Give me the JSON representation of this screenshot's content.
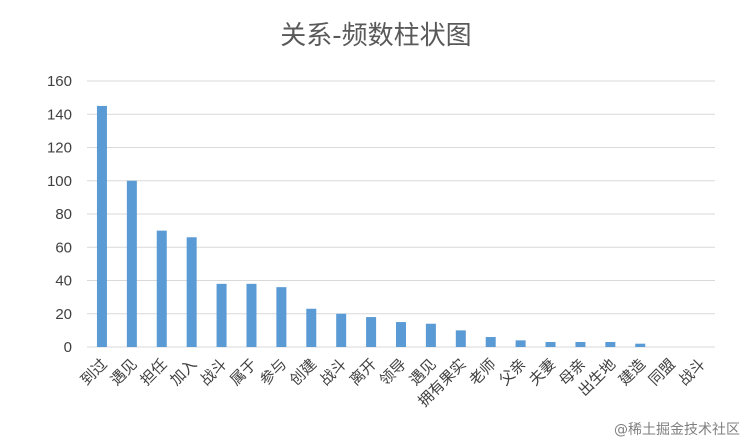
{
  "chart_data": {
    "type": "bar",
    "title": "关系-频数柱状图",
    "categories": [
      "到过",
      "遇见",
      "担任",
      "加入",
      "战斗",
      "属于",
      "参与",
      "创建",
      "战斗",
      "离开",
      "领导",
      "遇见",
      "拥有果实",
      "老师",
      "父亲",
      "夫妻",
      "母亲",
      "出生地",
      "建造",
      "同盟",
      "战斗"
    ],
    "values": [
      145,
      100,
      70,
      66,
      38,
      38,
      36,
      23,
      20,
      18,
      15,
      14,
      10,
      6,
      4,
      3,
      3,
      3,
      2,
      0,
      0
    ],
    "ylim": [
      0,
      160
    ],
    "yticks": [
      0,
      20,
      40,
      60,
      80,
      100,
      120,
      140,
      160
    ],
    "grid": true,
    "legend": "none",
    "colors": {
      "bar": "#5b9bd5",
      "grid": "#d9d9d9",
      "text": "#595959"
    }
  },
  "watermark": "@稀土掘金技术社区"
}
